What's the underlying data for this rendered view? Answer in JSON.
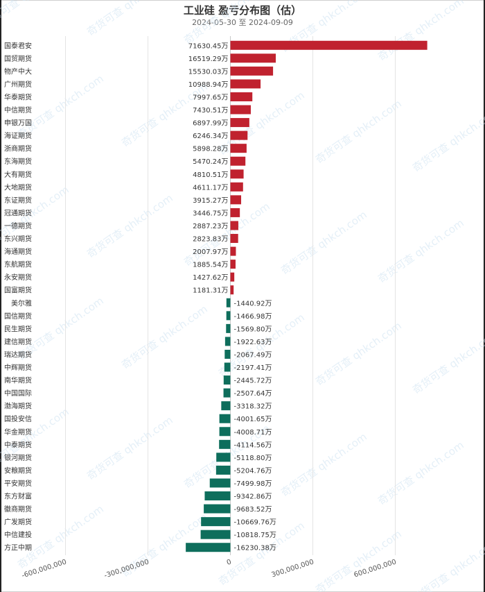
{
  "chart_data": {
    "type": "bar",
    "orientation": "horizontal",
    "title": "工业硅 盈亏分布图（估）",
    "date_start": "2024-05-30",
    "date_sep": "至",
    "date_end": "2024-09-09",
    "value_suffix": "万",
    "xlim": [
      -800000000,
      700000000
    ],
    "xticks": [
      -600000000,
      -300000000,
      0,
      300000000,
      600000000
    ],
    "xtick_labels": [
      "-600,000,000",
      "-300,000,000",
      "0",
      "300,000,000",
      "600,000,000"
    ],
    "grid": "vertical",
    "positive_color": "#c0222f",
    "negative_color": "#0e6e5c",
    "watermark": "奇货可查 qhkch.com",
    "categories": [
      "国泰君安",
      "国贸期货",
      "物产中大",
      "广州期货",
      "华泰期货",
      "中信期货",
      "申银万国",
      "海证期货",
      "浙商期货",
      "东海期货",
      "大有期货",
      "大地期货",
      "东证期货",
      "冠通期货",
      "一德期货",
      "东兴期货",
      "海通期货",
      "东航期货",
      "永安期货",
      "国富期货",
      "美尔雅",
      "国信期货",
      "民生期货",
      "建信期货",
      "瑞达期货",
      "中辉期货",
      "南华期货",
      "中国国际",
      "渤海期货",
      "国投安信",
      "华金期货",
      "中泰期货",
      "银河期货",
      "安粮期货",
      "平安期货",
      "东方财富",
      "徽商期货",
      "广发期货",
      "中信建投",
      "方正中期"
    ],
    "values_wan": [
      71630.45,
      16519.29,
      15530.03,
      10988.94,
      7997.65,
      7430.51,
      6897.99,
      6246.34,
      5898.28,
      5470.24,
      4810.51,
      4611.17,
      3915.27,
      3446.75,
      2887.23,
      2823.83,
      2007.97,
      1885.54,
      1427.62,
      1181.31,
      -1440.92,
      -1466.98,
      -1569.8,
      -1922.63,
      -2067.49,
      -2197.41,
      -2445.72,
      -2507.64,
      -3318.32,
      -4001.65,
      -4008.71,
      -4114.56,
      -5118.8,
      -5204.76,
      -7499.98,
      -9342.86,
      -9683.52,
      -10669.76,
      -10818.75,
      -16230.38
    ]
  }
}
